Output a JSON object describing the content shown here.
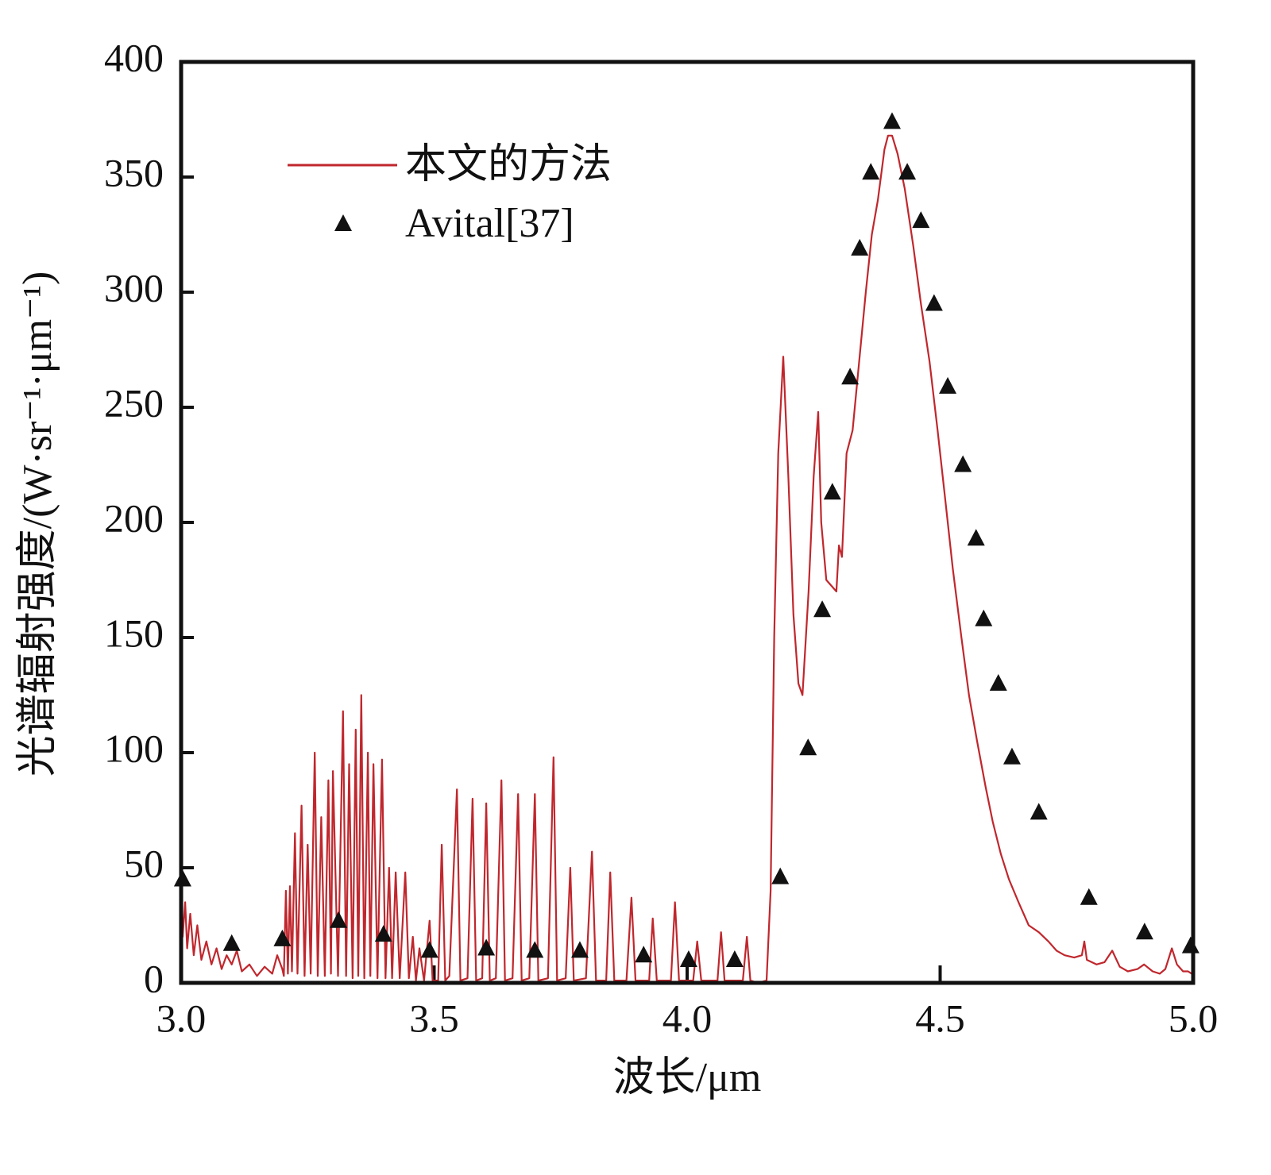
{
  "chart_data": {
    "type": "line",
    "xlabel": "波长/μm",
    "ylabel": "光谱辐射强度/(W·sr⁻¹·μm⁻¹)",
    "xlim": [
      3,
      5
    ],
    "ylim": [
      0,
      400
    ],
    "xticks": [
      {
        "value": 3,
        "label": "3.0"
      },
      3.5,
      {
        "value": 4,
        "label": "4.0"
      },
      4.5,
      {
        "value": 5,
        "label": "5.0"
      }
    ],
    "yticks": [
      0,
      50,
      100,
      150,
      200,
      250,
      300,
      350,
      400
    ],
    "legend": "upper left",
    "series": [
      {
        "name": "本文的方法",
        "type": "line",
        "color": "#c0272d",
        "x": [
          3.0,
          3.003,
          3.008,
          3.012,
          3.018,
          3.025,
          3.032,
          3.04,
          3.05,
          3.06,
          3.07,
          3.08,
          3.09,
          3.1,
          3.11,
          3.12,
          3.135,
          3.15,
          3.165,
          3.18,
          3.19,
          3.2,
          3.203,
          3.207,
          3.211,
          3.215,
          3.219,
          3.225,
          3.23,
          3.238,
          3.244,
          3.25,
          3.256,
          3.264,
          3.27,
          3.277,
          3.284,
          3.291,
          3.296,
          3.3,
          3.31,
          3.32,
          3.326,
          3.332,
          3.339,
          3.345,
          3.35,
          3.356,
          3.362,
          3.369,
          3.374,
          3.38,
          3.388,
          3.397,
          3.404,
          3.411,
          3.417,
          3.424,
          3.432,
          3.443,
          3.45,
          3.458,
          3.464,
          3.471,
          3.48,
          3.491,
          3.497,
          3.508,
          3.515,
          3.522,
          3.53,
          3.545,
          3.552,
          3.566,
          3.576,
          3.583,
          3.595,
          3.603,
          3.61,
          3.622,
          3.633,
          3.64,
          3.655,
          3.666,
          3.673,
          3.688,
          3.699,
          3.706,
          3.725,
          3.736,
          3.743,
          3.76,
          3.769,
          3.776,
          3.8,
          3.812,
          3.82,
          3.84,
          3.848,
          3.856,
          3.88,
          3.89,
          3.898,
          3.925,
          3.932,
          3.94,
          3.968,
          3.976,
          3.984,
          4.012,
          4.02,
          4.028,
          4.06,
          4.067,
          4.074,
          4.11,
          4.118,
          4.125,
          4.14,
          4.157,
          4.165,
          4.172,
          4.18,
          4.19,
          4.2,
          4.21,
          4.22,
          4.228,
          4.24,
          4.25,
          4.259,
          4.265,
          4.275,
          4.295,
          4.3,
          4.306,
          4.315,
          4.327,
          4.34,
          4.353,
          4.365,
          4.377,
          4.39,
          4.397,
          4.405,
          4.416,
          4.43,
          4.447,
          4.462,
          4.479,
          4.495,
          4.51,
          4.525,
          4.542,
          4.557,
          4.573,
          4.59,
          4.604,
          4.62,
          4.636,
          4.655,
          4.675,
          4.695,
          4.714,
          4.73,
          4.746,
          4.765,
          4.78,
          4.785,
          4.79,
          4.809,
          4.825,
          4.84,
          4.855,
          4.871,
          4.89,
          4.903,
          4.92,
          4.934,
          4.945,
          4.958,
          4.968,
          4.98,
          4.99,
          4.997
        ],
        "values": [
          45,
          20,
          35,
          15,
          30,
          12,
          25,
          10,
          18,
          8,
          15,
          6,
          12,
          8,
          14,
          5,
          8,
          3,
          7,
          4,
          12,
          6,
          3,
          40,
          4,
          42,
          5,
          65,
          4,
          77,
          3,
          60,
          4,
          100,
          3,
          72,
          3,
          88,
          4,
          92,
          3,
          118,
          3,
          95,
          2,
          110,
          3,
          125,
          2,
          100,
          3,
          95,
          2,
          97,
          2,
          50,
          2,
          48,
          2,
          48,
          2,
          20,
          1,
          15,
          1,
          27,
          1,
          1,
          60,
          1,
          3,
          84,
          1,
          2,
          80,
          1,
          2,
          78,
          1,
          2,
          88,
          1,
          2,
          82,
          1,
          2,
          82,
          1,
          2,
          98,
          1,
          2,
          50,
          1,
          2,
          57,
          1,
          1,
          48,
          1,
          1,
          37,
          1,
          1,
          28,
          1,
          1,
          35,
          1,
          1,
          18,
          1,
          1,
          22,
          1,
          1,
          20,
          1,
          0,
          1,
          40,
          150,
          230,
          272,
          220,
          160,
          130,
          125,
          170,
          220,
          248,
          200,
          175,
          170,
          190,
          185,
          230,
          240,
          270,
          300,
          325,
          340,
          362,
          368,
          368,
          360,
          345,
          320,
          295,
          270,
          240,
          210,
          180,
          150,
          125,
          105,
          85,
          70,
          56,
          45,
          35,
          25,
          22,
          18,
          14,
          12,
          11,
          12,
          18,
          10,
          8,
          9,
          14,
          7,
          5,
          6,
          8,
          5,
          4,
          6,
          15,
          8,
          5,
          5,
          4
        ]
      },
      {
        "name": "Avital[37]",
        "type": "scatter",
        "color": "#111111",
        "x": [
          3.003,
          3.1,
          3.2,
          3.311,
          3.4,
          3.491,
          3.603,
          3.699,
          3.788,
          3.914,
          4.003,
          4.094,
          4.184,
          4.239,
          4.267,
          4.287,
          4.322,
          4.341,
          4.363,
          4.405,
          4.435,
          4.462,
          4.488,
          4.515,
          4.545,
          4.571,
          4.586,
          4.615,
          4.642,
          4.695,
          4.794,
          4.904,
          4.995
        ],
        "values": [
          45,
          17,
          19,
          27,
          21,
          14,
          15,
          14,
          14,
          12,
          10,
          10,
          46,
          102,
          162,
          213,
          263,
          319,
          352,
          374,
          352,
          331,
          295,
          259,
          225,
          193,
          158,
          130,
          98,
          74,
          37,
          22,
          16
        ]
      }
    ]
  }
}
